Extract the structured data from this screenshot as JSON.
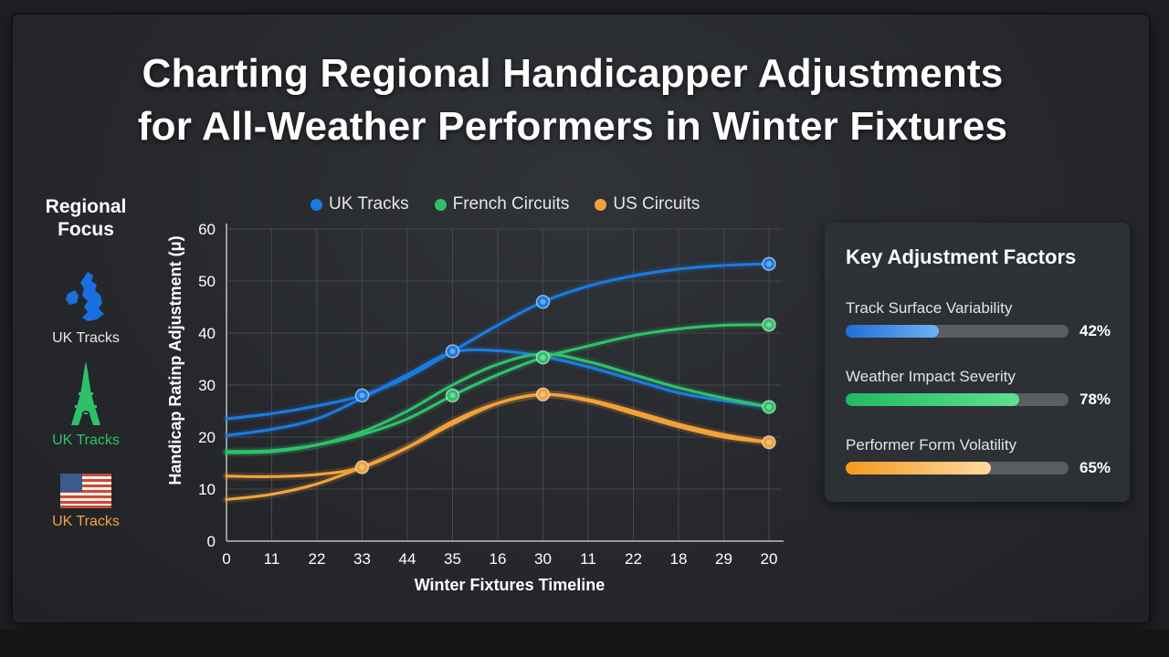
{
  "title_line1": "Charting Regional Handicapper Adjustments",
  "title_line2": "for All-Weather Performers in Winter Fixtures",
  "regional_focus": {
    "heading_line1": "Regional",
    "heading_line2": "Focus",
    "items": [
      {
        "label": "UK Tracks",
        "icon": "uk-map-icon",
        "color": "#e8e8e8"
      },
      {
        "label": "UK Tracks",
        "icon": "eiffel-tower-icon",
        "color": "#2ec16a"
      },
      {
        "label": "UK Tracks",
        "icon": "us-flag-icon",
        "color": "#f2a23a"
      }
    ]
  },
  "key_factors": {
    "title": "Key Adjustment Factors",
    "items": [
      {
        "label": "Track Surface Variability",
        "value": 42,
        "display": "42%",
        "color_from": "#1f6fd6",
        "color_to": "#6fb0f5"
      },
      {
        "label": "Weather Impact Severity",
        "value": 78,
        "display": "78%",
        "color_from": "#22b866",
        "color_to": "#5ee08f"
      },
      {
        "label": "Performer Form Volatility",
        "value": 65,
        "display": "65%",
        "color_from": "#f29a1f",
        "color_to": "#ffd9a0"
      }
    ]
  },
  "chart_data": {
    "type": "line",
    "title": "",
    "xlabel": "Winter Fixtures Timeline",
    "ylabel": "Handicap Ratinp Adjustment (μ)",
    "ylim": [
      0,
      60
    ],
    "yticks": [
      0,
      10,
      20,
      30,
      40,
      50,
      60
    ],
    "categories": [
      "0",
      "11",
      "22",
      "33",
      "44",
      "35",
      "16",
      "30",
      "11",
      "22",
      "18",
      "29",
      "20"
    ],
    "grid": true,
    "legend": "top",
    "series": [
      {
        "name": "UK Tracks",
        "color": "#1a7be0",
        "values": [
          23.5,
          24.5,
          26,
          28,
          31.5,
          36.5,
          41.5,
          46,
          49,
          51,
          52.3,
          53,
          53.3
        ],
        "markers": [
          3,
          5,
          7,
          12
        ]
      },
      {
        "name": "",
        "color": "#1a7be0",
        "values": [
          20.3,
          21.5,
          23.5,
          27.5,
          32,
          36.3,
          36.6,
          35.5,
          33.5,
          31,
          28.5,
          27,
          25.8
        ],
        "markers": []
      },
      {
        "name": "French Circuits",
        "color": "#2ec16a",
        "values": [
          17.2,
          17.4,
          18.5,
          20.5,
          23.5,
          28,
          32,
          35.3,
          37.5,
          39.5,
          40.8,
          41.5,
          41.6
        ],
        "markers": [
          5,
          7,
          12
        ]
      },
      {
        "name": "",
        "color": "#2ec16a",
        "values": [
          17,
          17.2,
          18.5,
          21,
          25,
          30,
          34,
          36,
          34.5,
          32,
          29.5,
          27.5,
          25.8
        ],
        "markers": [
          12
        ]
      },
      {
        "name": "US Circuits",
        "color": "#f2a23a",
        "values": [
          12.5,
          12.4,
          12.8,
          14.2,
          18,
          23,
          26.5,
          28.2,
          27,
          24.5,
          22,
          20,
          19
        ],
        "markers": [
          3,
          7,
          12
        ]
      },
      {
        "name": "",
        "color": "#f2a23a",
        "values": [
          8,
          9,
          11,
          14.2,
          18,
          22.5,
          26.5,
          28.2,
          27.2,
          25,
          22.5,
          20.5,
          19
        ],
        "markers": []
      }
    ]
  }
}
